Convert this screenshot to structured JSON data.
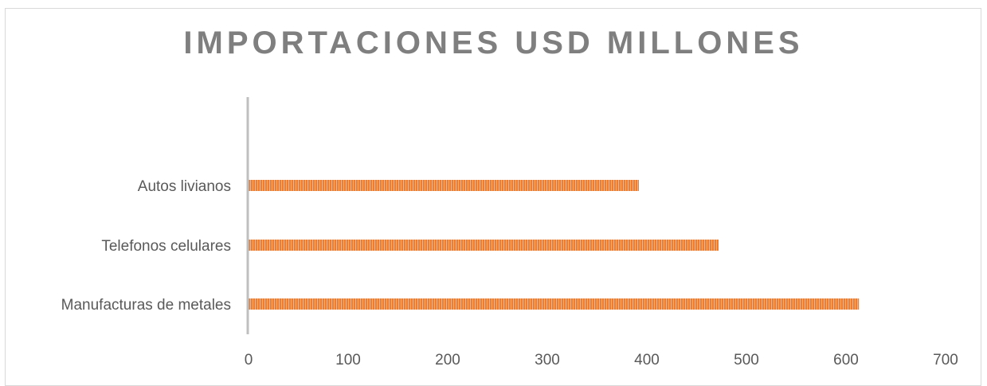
{
  "chart_data": {
    "type": "bar",
    "orientation": "horizontal",
    "title": "IMPORTACIONES USD MILLONES",
    "categories": [
      "Autos livianos",
      "Telefonos celulares",
      "Manufacturas de metales"
    ],
    "series": [
      {
        "values": [
          392,
          472,
          613
        ],
        "color": "#ed7d31"
      }
    ],
    "xlim": [
      0,
      700
    ],
    "xticks": [
      "0",
      "100",
      "200",
      "300",
      "400",
      "500",
      "600",
      "700"
    ],
    "grid": false,
    "legend": "none",
    "colors": {
      "bar": "#ed7d31",
      "bar_stripe": "#f4b183",
      "axis": "#bfbfbf",
      "text": "#595959",
      "title": "#7f7f7f"
    }
  }
}
